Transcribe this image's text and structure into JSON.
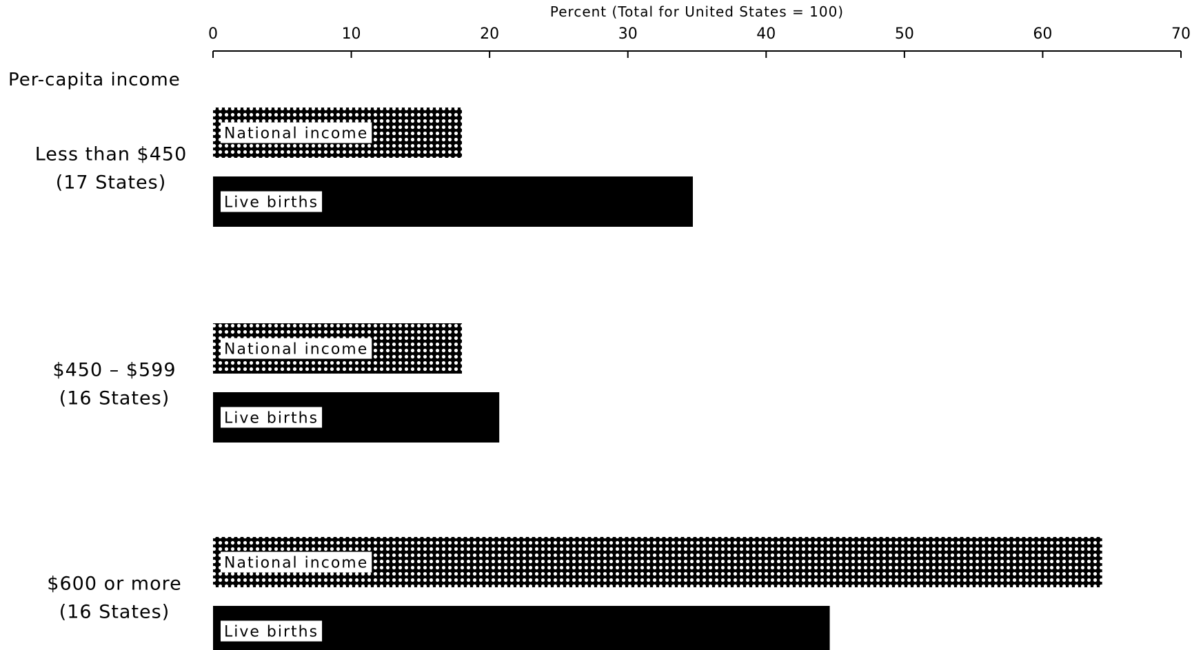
{
  "chart_data": {
    "type": "bar",
    "orientation": "horizontal",
    "title": "",
    "xlabel": "Percent (Total for United States = 100)",
    "ylabel": "Per-capita income",
    "xlim": [
      0,
      70
    ],
    "x_ticks": [
      0,
      10,
      20,
      30,
      40,
      50,
      60,
      70
    ],
    "grid": false,
    "categories": [
      {
        "name": "Less than $450",
        "sub": "(17 States)"
      },
      {
        "name": "$450 – $599",
        "sub": "(16 States)"
      },
      {
        "name": "$600 or more",
        "sub": "(16 States)"
      }
    ],
    "series": [
      {
        "name": "National income",
        "pattern": "dotted",
        "color": "#000000",
        "values": [
          18,
          18,
          64.3
        ]
      },
      {
        "name": "Live births",
        "pattern": "solid",
        "color": "#000000",
        "values": [
          34.7,
          20.7,
          44.6
        ]
      }
    ]
  }
}
